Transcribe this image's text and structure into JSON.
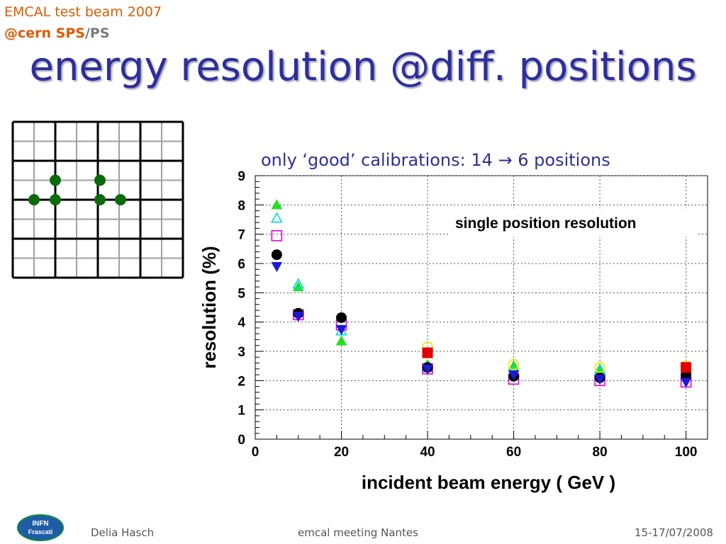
{
  "header": {
    "line1": "EMCAL test beam 2007",
    "line2_a": "@cern SPS",
    "line2_b": "/PS"
  },
  "title": "energy resolution @diff. positions",
  "subtitle": "only ‘good’ calibrations: 14 → 6 positions",
  "grid_positions": {
    "cols": 4,
    "rows": 4,
    "dots": [
      {
        "col": 1,
        "row": 1.5,
        "color": "#0b6b0b"
      },
      {
        "col": 2,
        "row": 1.5,
        "color": "#0b6b0b"
      },
      {
        "col": 0.5,
        "row": 2,
        "color": "#0b6b0b"
      },
      {
        "col": 1,
        "row": 2,
        "color": "#0b6b0b"
      },
      {
        "col": 2,
        "row": 2,
        "color": "#0b6b0b"
      },
      {
        "col": 2.5,
        "row": 2,
        "color": "#0b6b0b"
      }
    ]
  },
  "chart_data": {
    "type": "scatter",
    "xlabel": "incident beam energy ( GeV )",
    "ylabel": "resolution (%)",
    "xlim": [
      0,
      105
    ],
    "ylim": [
      0,
      9
    ],
    "xticks": [
      0,
      20,
      40,
      60,
      80,
      100
    ],
    "yticks": [
      0,
      1,
      2,
      3,
      4,
      5,
      6,
      7,
      8,
      9
    ],
    "grid": true,
    "annotation": "single position resolution",
    "series": [
      {
        "marker": "triangle-up",
        "fill": true,
        "color": "#22e022",
        "x": [
          5,
          10,
          20,
          40,
          60,
          80,
          100
        ],
        "y": [
          8.0,
          5.2,
          3.35,
          2.55,
          2.5,
          2.4,
          2.35
        ]
      },
      {
        "marker": "triangle-up",
        "fill": false,
        "color": "#00d8e8",
        "x": [
          5,
          10,
          20,
          40,
          60,
          80,
          100
        ],
        "y": [
          7.55,
          5.3,
          3.7,
          2.45,
          2.3,
          2.35,
          2.25
        ]
      },
      {
        "marker": "square",
        "fill": false,
        "color": "#e000e0",
        "x": [
          5,
          10,
          20,
          40,
          60,
          80,
          100
        ],
        "y": [
          6.95,
          4.25,
          3.9,
          2.4,
          2.05,
          2.0,
          1.95
        ]
      },
      {
        "marker": "circle",
        "fill": true,
        "color": "#000000",
        "x": [
          5,
          10,
          20,
          40,
          60,
          80,
          100
        ],
        "y": [
          6.3,
          4.3,
          4.15,
          2.45,
          2.15,
          2.1,
          2.2
        ]
      },
      {
        "marker": "triangle-down",
        "fill": true,
        "color": "#1a1ad8",
        "x": [
          5,
          10,
          20,
          40,
          60,
          80,
          100
        ],
        "y": [
          5.9,
          4.2,
          3.75,
          2.4,
          2.2,
          2.05,
          1.95
        ]
      },
      {
        "marker": "circle",
        "fill": false,
        "color": "#e8e800",
        "x": [
          40,
          60,
          80,
          100
        ],
        "y": [
          3.15,
          2.55,
          2.45,
          2.5
        ]
      },
      {
        "marker": "square",
        "fill": true,
        "color": "#e00000",
        "x": [
          40,
          100
        ],
        "y": [
          2.95,
          2.45
        ]
      }
    ]
  },
  "footer": {
    "author": "Delia Hasch",
    "meeting": "emcal meeting Nantes",
    "date": "15-17/07/2008",
    "logo_text1": "INFN",
    "logo_text2": "Frascati"
  }
}
